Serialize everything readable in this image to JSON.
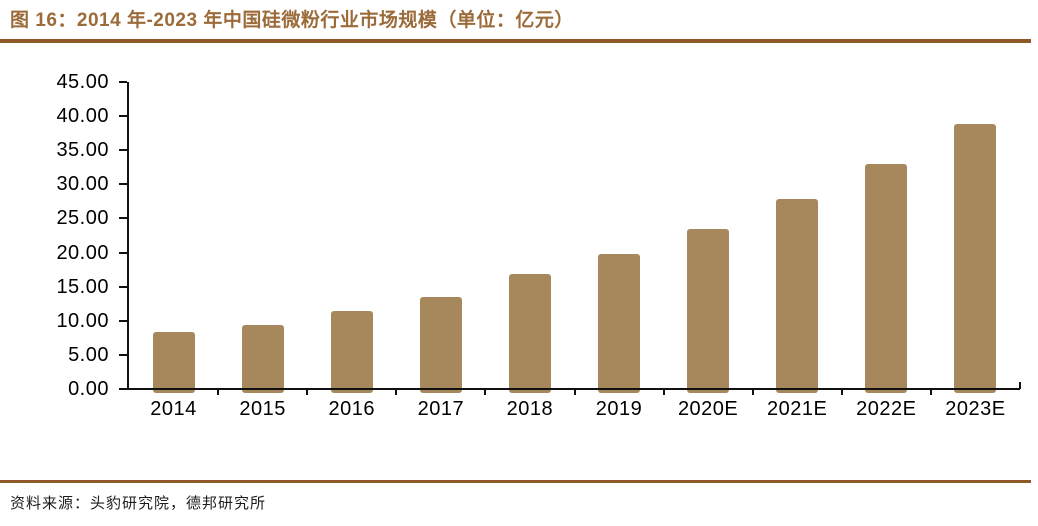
{
  "header": {
    "title": "图 16：2014 年-2023 年中国硅微粉行业市场规模（单位：亿元）"
  },
  "chart_data": {
    "type": "bar",
    "title": "2014 年-2023 年中国硅微粉行业市场规模",
    "unit_label": "亿元",
    "categories": [
      "2014",
      "2015",
      "2016",
      "2017",
      "2018",
      "2019",
      "2020E",
      "2021E",
      "2022E",
      "2023E"
    ],
    "values": [
      8.9,
      10.0,
      12.0,
      14.1,
      17.4,
      20.4,
      24.1,
      28.5,
      33.5,
      39.5
    ],
    "ylim": [
      0,
      45
    ],
    "ytick_step": 5,
    "ytick_labels": [
      "0.00",
      "5.00",
      "10.00",
      "15.00",
      "20.00",
      "25.00",
      "30.00",
      "35.00",
      "40.00",
      "45.00"
    ],
    "xlabel": "",
    "ylabel": "",
    "grid": false,
    "legend": "none",
    "bar_color": "#A7875C",
    "axis_color": "#111111"
  },
  "footer": {
    "source": "资料来源：头豹研究院，德邦研究所"
  },
  "colors": {
    "accent_rule": "#8F5A28",
    "title_text": "#9C6B3A",
    "bar": "#A7875C"
  }
}
